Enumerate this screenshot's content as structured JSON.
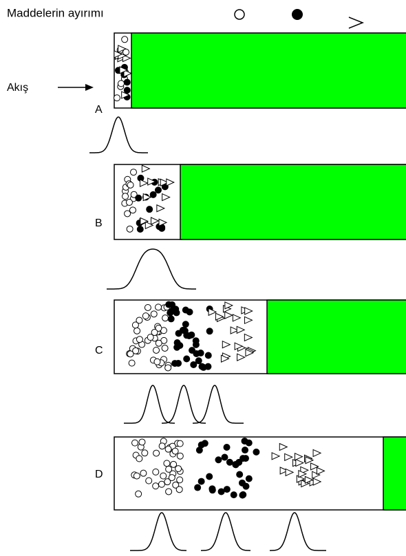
{
  "title": "Maddelerin ayırımı",
  "flow_label": "Akış",
  "panels": [
    {
      "label": "A"
    },
    {
      "label": "B"
    },
    {
      "label": "C"
    },
    {
      "label": "D"
    }
  ]
}
